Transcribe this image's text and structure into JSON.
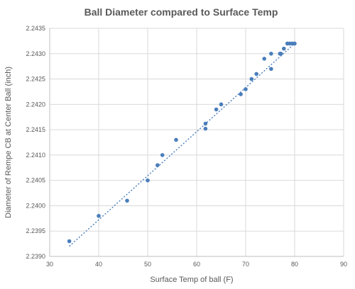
{
  "chart_data": {
    "type": "scatter",
    "title": "Ball Diameter compared to Surface Temp",
    "xlabel": "Surface Temp of ball (F)",
    "ylabel": "Diameter of Rempe CB at Center Ball (inch)",
    "xlim": [
      30,
      90
    ],
    "ylim": [
      2.239,
      2.2435
    ],
    "xticks": [
      "30",
      "40",
      "50",
      "60",
      "70",
      "80",
      "90"
    ],
    "yticks": [
      "2.2390",
      "2.2395",
      "2.2400",
      "2.2405",
      "2.2410",
      "2.2415",
      "2.2420",
      "2.2425",
      "2.2430",
      "2.2435"
    ],
    "grid": true,
    "trendline": {
      "style": "dotted linear",
      "x": [
        34,
        80
      ],
      "y": [
        2.2392,
        2.2432
      ]
    },
    "colors": {
      "points": "#4a7ebb",
      "trendline": "#4a7ebb",
      "grid": "#d9d9d9",
      "text": "#595959"
    },
    "series": [
      {
        "x": [
          34,
          40,
          45.8,
          50,
          52,
          53,
          55.8,
          61.8,
          61.8,
          64,
          65,
          69,
          70,
          71.2,
          72.2,
          73.8,
          75.2,
          75.2,
          77,
          77.2,
          77.8,
          78.5,
          79,
          79.5,
          80
        ],
        "y": [
          2.2393,
          2.2398,
          2.2401,
          2.2405,
          2.2408,
          2.241,
          2.2413,
          2.24152,
          2.24162,
          2.2419,
          2.242,
          2.2422,
          2.2423,
          2.2425,
          2.2426,
          2.2429,
          2.2427,
          2.243,
          2.243,
          2.243,
          2.2431,
          2.2432,
          2.2432,
          2.2432,
          2.2432
        ]
      }
    ]
  }
}
